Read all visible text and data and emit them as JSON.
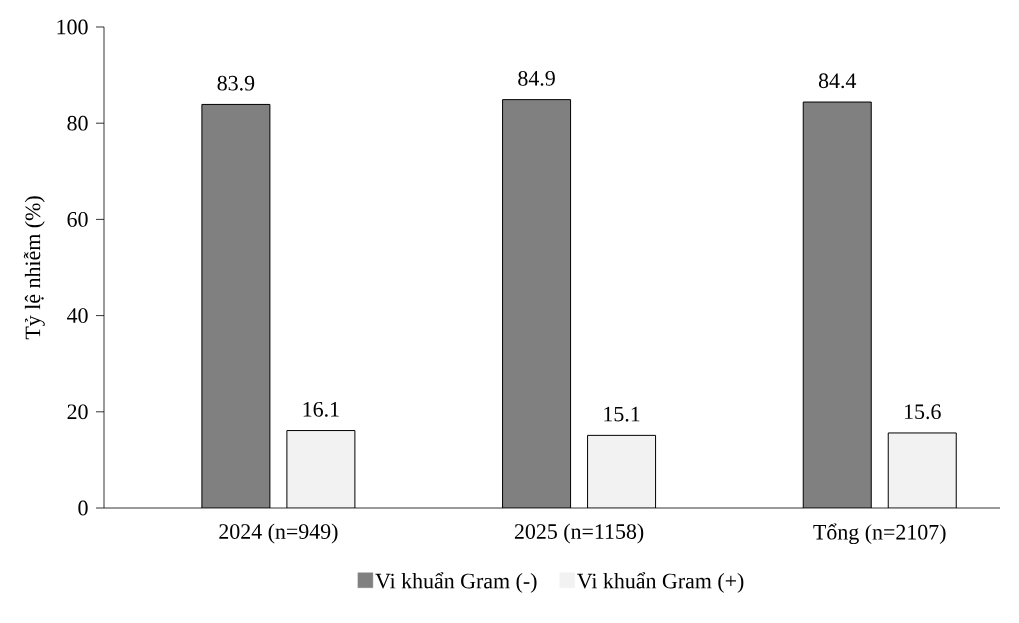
{
  "chart_data": {
    "type": "bar",
    "ylabel": "Tỷ lệ nhiễm (%)",
    "categories": [
      "2024 (n=949)",
      "2025 (n=1158)",
      "Tổng (n=2107)"
    ],
    "series": [
      {
        "name": "Vi khuẩn Gram (-)",
        "color": "#808080",
        "values": [
          83.9,
          84.9,
          84.4
        ]
      },
      {
        "name": "Vi khuẩn Gram (+)",
        "color": "#f2f2f2",
        "values": [
          16.1,
          15.1,
          15.6
        ]
      }
    ],
    "ylim": [
      0,
      100
    ],
    "yticks": [
      0,
      20,
      40,
      60,
      80,
      100
    ],
    "data_labels": true,
    "grid": false,
    "legend": "bottom"
  }
}
